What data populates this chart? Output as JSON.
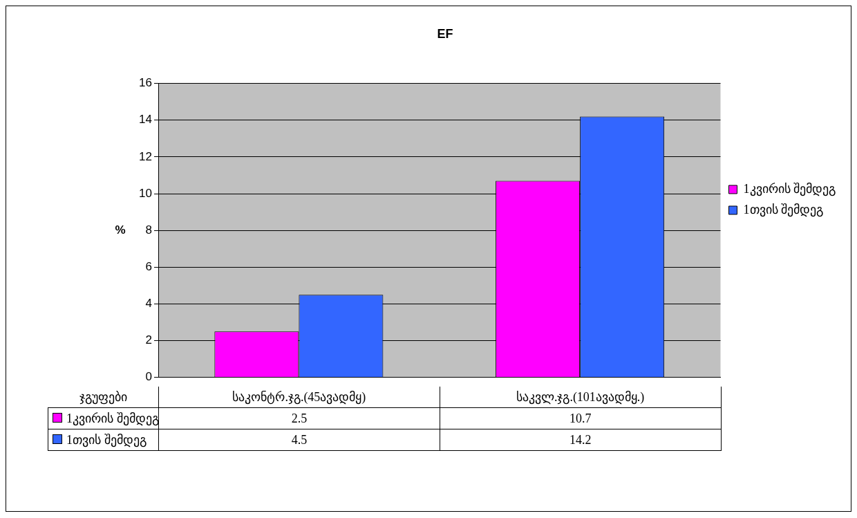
{
  "chart_data": {
    "type": "bar",
    "title": "EF",
    "xlabel": "ჯგუფები",
    "ylabel": "%",
    "categories": [
      "საკონტრ.ჯგ.(45ავადმყ)",
      "საკვლ.ჯგ.(101ავადმყ.)"
    ],
    "series": [
      {
        "name": "1კვირის შემდეგ",
        "color": "#ff00ff",
        "values": [
          2.5,
          10.7
        ]
      },
      {
        "name": "1თვის შემდეგ",
        "color": "#3366ff",
        "values": [
          4.5,
          14.2
        ]
      }
    ],
    "ylim": [
      0,
      16
    ],
    "yticks": [
      0,
      2,
      4,
      6,
      8,
      10,
      12,
      14,
      16
    ],
    "grid": "y",
    "legend": "right",
    "data_labels": true
  }
}
